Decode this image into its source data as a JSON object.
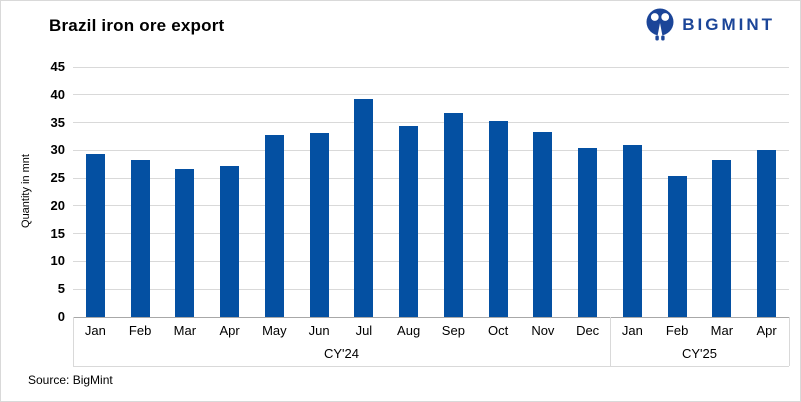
{
  "header": {
    "title": "Brazil iron ore export"
  },
  "logo": {
    "text": "BIGMINT",
    "icon": "bigmint-people-circle-icon",
    "color": "#1b4598"
  },
  "footer": {
    "source": "Source: BigMint"
  },
  "colors": {
    "bar": "#0450a2",
    "gridline": "#d9d9d9",
    "axis_line": "#a8a8a8",
    "band_line": "#d9d9d9",
    "text": "#000000"
  },
  "chart_data": {
    "type": "bar",
    "title": "Brazil iron ore export",
    "xlabel": "",
    "ylabel": "Quantity in mnt",
    "ylim": [
      0,
      45
    ],
    "ytick_step": 5,
    "grid": true,
    "legend": false,
    "bar_color": "#0450a2",
    "groups": [
      {
        "label": "CY'24",
        "categories": [
          "Jan",
          "Feb",
          "Mar",
          "Apr",
          "May",
          "Jun",
          "Jul",
          "Aug",
          "Sep",
          "Oct",
          "Nov",
          "Dec"
        ],
        "values": [
          29.3,
          28.2,
          26.7,
          27.1,
          32.8,
          33.1,
          39.3,
          34.3,
          36.8,
          35.2,
          33.3,
          30.5
        ]
      },
      {
        "label": "CY'25",
        "categories": [
          "Jan",
          "Feb",
          "Mar",
          "Apr"
        ],
        "values": [
          31.0,
          25.4,
          28.3,
          30.1
        ]
      }
    ]
  }
}
